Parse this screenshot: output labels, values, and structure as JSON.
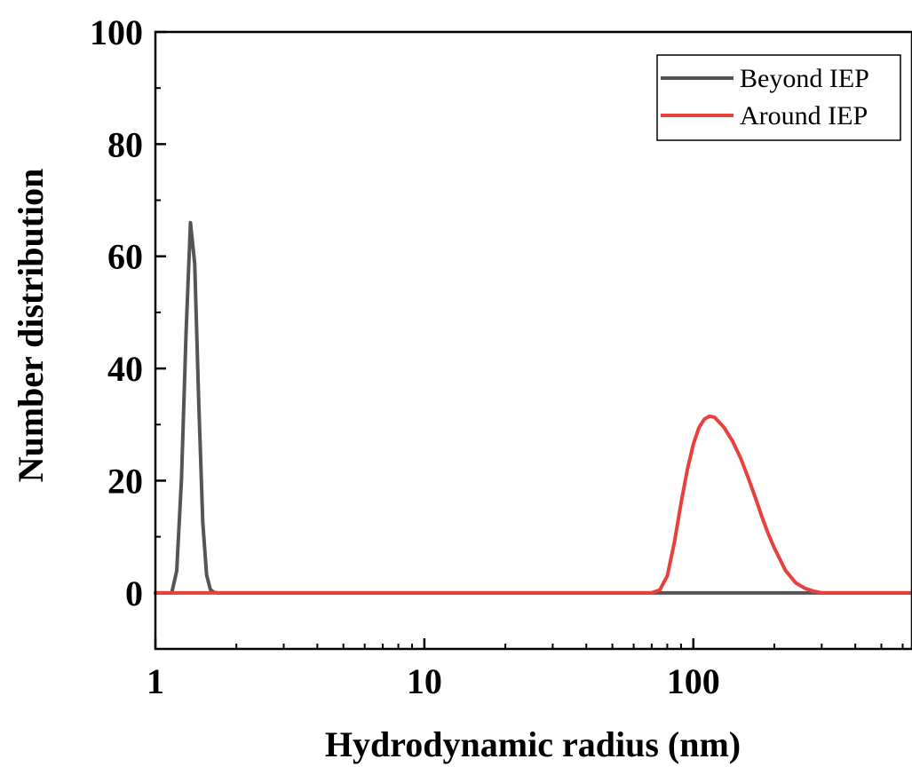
{
  "chart_data": {
    "type": "line",
    "title": "",
    "xlabel": "Hydrodynamic radius (nm)",
    "ylabel": "Number distribution",
    "x_scale": "log",
    "xlim": [
      1,
      650
    ],
    "ylim": [
      -10,
      100
    ],
    "x_ticks": [
      1,
      10,
      100
    ],
    "x_tick_labels": [
      "1",
      "10",
      "100"
    ],
    "y_ticks": [
      0,
      20,
      40,
      60,
      80,
      100
    ],
    "y_tick_labels": [
      "0",
      "20",
      "40",
      "60",
      "80",
      "100"
    ],
    "grid": false,
    "legend_position": "top-right",
    "series": [
      {
        "name": "Beyond IEP",
        "color": "#555555",
        "x": [
          1.0,
          1.15,
          1.2,
          1.25,
          1.3,
          1.35,
          1.4,
          1.45,
          1.5,
          1.55,
          1.6,
          1.65,
          1.7,
          1.8,
          10,
          100,
          300,
          650
        ],
        "y": [
          0,
          0,
          3.9,
          20.2,
          46.3,
          66.0,
          58.7,
          33.6,
          12.6,
          3.2,
          0.6,
          0.1,
          0,
          0,
          0,
          0,
          0,
          0
        ]
      },
      {
        "name": "Around IEP",
        "color": "#e8403c",
        "x": [
          1.0,
          10,
          70,
          75,
          80,
          85,
          90,
          95,
          100,
          105,
          110,
          115,
          120,
          130,
          140,
          150,
          160,
          170,
          180,
          190,
          200,
          220,
          240,
          260,
          280,
          300,
          650
        ],
        "y": [
          0,
          0,
          0,
          0.5,
          3,
          9,
          16,
          22,
          26.5,
          29.5,
          31,
          31.5,
          31.3,
          29.5,
          27,
          24,
          20.5,
          17,
          13.5,
          10.5,
          8,
          4,
          1.8,
          0.8,
          0.3,
          0,
          0
        ]
      }
    ]
  }
}
